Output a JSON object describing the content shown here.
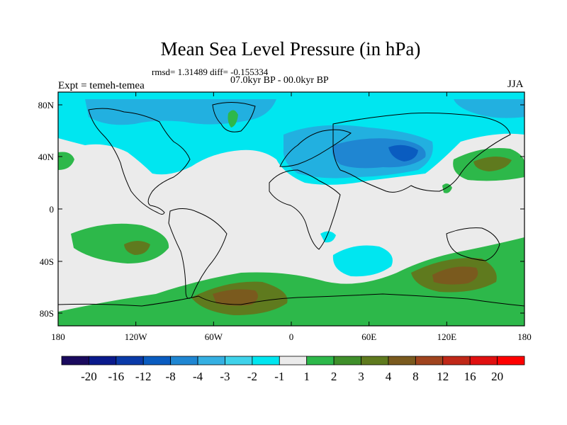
{
  "title": "Mean Sea Level Pressure (in hPa)",
  "stats": "rmsd= 1.31489 diff= -0.155334",
  "period": "07.0kyr BP - 00.0kyr BP",
  "experiment": "Expt = temeh-temea",
  "season": "JJA",
  "y_ticks": [
    "80N",
    "40N",
    "0",
    "40S",
    "80S"
  ],
  "x_ticks": [
    "180",
    "120W",
    "60W",
    "0",
    "60E",
    "120E",
    "180"
  ],
  "colorbar": {
    "labels": [
      "-20",
      "-16",
      "-12",
      "-8",
      "-4",
      "-3",
      "-2",
      "-1",
      "1",
      "2",
      "3",
      "4",
      "8",
      "12",
      "16",
      "20"
    ],
    "colors": [
      "#1a0a5e",
      "#0a1a8c",
      "#0a3aa8",
      "#0a5cc0",
      "#1f86d2",
      "#35b0e2",
      "#3fd2ea",
      "#00e6f0",
      "#ebebeb",
      "#2db84a",
      "#3f8f2a",
      "#5f7a1e",
      "#7a5a1e",
      "#a0441e",
      "#c02818",
      "#e01010",
      "#ff0000"
    ]
  },
  "palette": {
    "neutral": "#ebebeb",
    "light_blue": "#00e6f0",
    "mid_blue": "#22b0e0",
    "blue": "#1f86d2",
    "dark_blue": "#0a5cc0",
    "green": "#2db84a",
    "dark_green": "#3f8f2a",
    "olive": "#5f7a1e",
    "brown": "#7a5a1e"
  }
}
